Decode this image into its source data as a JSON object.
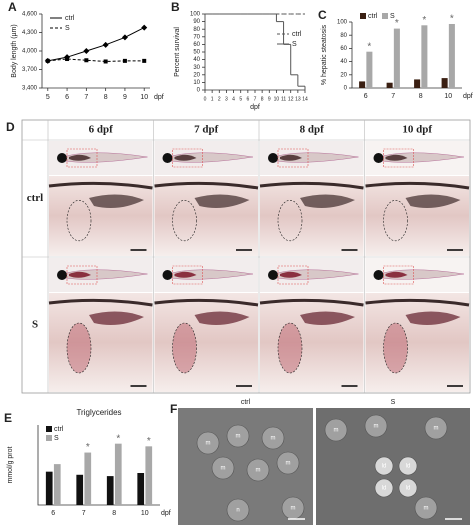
{
  "chart_data": [
    {
      "panel": "A",
      "type": "line",
      "ylabel": "Body length (µm)",
      "xlabel": "dpf",
      "x": [
        5,
        6,
        7,
        8,
        9,
        10
      ],
      "xlim": [
        4.7,
        10.3
      ],
      "xticks": [
        5,
        6,
        7,
        8,
        9,
        10
      ],
      "ylim": [
        3400,
        4600
      ],
      "yticks": [
        {
          "value": 3400,
          "label": "3,400"
        },
        {
          "value": 3700,
          "label": "3,700"
        },
        {
          "value": 4000,
          "label": "4,000"
        },
        {
          "value": 4300,
          "label": "4,300"
        },
        {
          "value": 4600,
          "label": "4,600"
        }
      ],
      "legend": "top-left",
      "series": [
        {
          "name": "ctrl",
          "color": "#000000",
          "marker": "diamond",
          "dash": false,
          "values": [
            3840,
            3900,
            4000,
            4100,
            4220,
            4380
          ]
        },
        {
          "name": "S",
          "color": "#000000",
          "marker": "square",
          "dash": true,
          "values": [
            3840,
            3870,
            3850,
            3830,
            3840,
            3840
          ]
        }
      ]
    },
    {
      "panel": "B",
      "type": "line",
      "step": true,
      "ylabel": "Percent survival",
      "xlabel": "dpf",
      "x": [
        0,
        1,
        2,
        3,
        4,
        5,
        6,
        7,
        8,
        9,
        10,
        11,
        12,
        13,
        14
      ],
      "xlim": [
        0,
        14
      ],
      "xticks": [
        0,
        1,
        2,
        3,
        4,
        5,
        6,
        7,
        8,
        9,
        10,
        11,
        12,
        13,
        14
      ],
      "ylim": [
        0,
        100
      ],
      "yticks": [
        0,
        10,
        20,
        30,
        40,
        50,
        60,
        70,
        80,
        90,
        100
      ],
      "legend": "top-right",
      "series": [
        {
          "name": "ctrl",
          "color": "#555555",
          "dash": true,
          "values": [
            100,
            100,
            100,
            100,
            100,
            100,
            100,
            100,
            100,
            100,
            100,
            100,
            100,
            100,
            100
          ]
        },
        {
          "name": "S",
          "color": "#555555",
          "dash": false,
          "values": [
            100,
            100,
            100,
            100,
            100,
            100,
            100,
            100,
            100,
            100,
            90,
            60,
            20,
            5,
            0
          ]
        }
      ]
    },
    {
      "panel": "C",
      "type": "bar",
      "ylabel": "% hepatic steatosis",
      "xlabel": "dpf",
      "categories": [
        "6",
        "7",
        "8",
        "10"
      ],
      "ylim": [
        0,
        100
      ],
      "yticks": [
        0,
        20,
        40,
        60,
        80,
        100
      ],
      "legend": "top-left",
      "significance": [
        "*",
        "*",
        "*",
        "*"
      ],
      "series": [
        {
          "name": "ctrl",
          "color": "#3a1f12",
          "values": [
            10,
            8,
            13,
            15
          ]
        },
        {
          "name": "S",
          "color": "#a8a8a8",
          "values": [
            55,
            90,
            95,
            97
          ]
        }
      ]
    },
    {
      "panel": "E",
      "type": "bar",
      "title": "Triglycerides",
      "ylabel": "mmol/g prot",
      "xlabel": "dpf",
      "categories": [
        "6",
        "7",
        "8",
        "10"
      ],
      "ylim": [
        0,
        1.8
      ],
      "legend": "top-left",
      "significance": [
        null,
        "*",
        "*",
        "*"
      ],
      "series": [
        {
          "name": "ctrl",
          "color": "#111111",
          "values": [
            0.75,
            0.68,
            0.65,
            0.72
          ]
        },
        {
          "name": "S",
          "color": "#a8a8a8",
          "values": [
            0.92,
            1.18,
            1.38,
            1.32
          ]
        }
      ]
    }
  ],
  "panel_d": {
    "letter": "D",
    "columns": [
      "6 dpf",
      "7 dpf",
      "8 dpf",
      "10 dpf"
    ],
    "rows": [
      "ctrl",
      "S"
    ]
  },
  "panel_f": {
    "letter": "F",
    "images": [
      {
        "title": "ctrl",
        "labels": [
          "m",
          "m",
          "m",
          "m",
          "m",
          "m",
          "n",
          "m"
        ]
      },
      {
        "title": "S",
        "labels": [
          "m",
          "m",
          "m",
          "ld",
          "ld",
          "ld",
          "ld",
          "m"
        ]
      }
    ]
  }
}
